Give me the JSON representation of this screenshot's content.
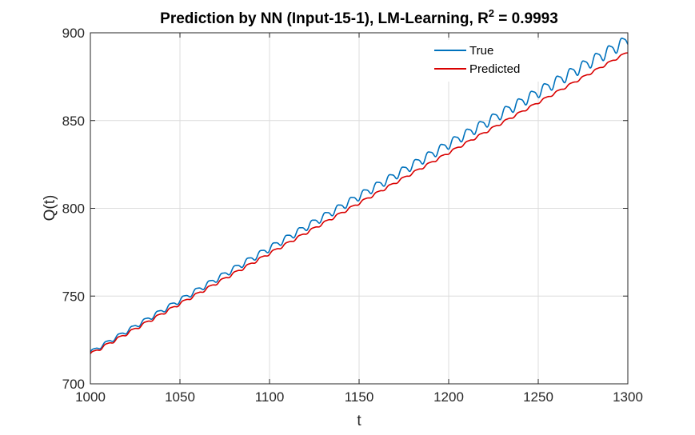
{
  "chart_data": {
    "type": "line",
    "title": {
      "prefix": "Prediction by NN (Input-15-1), LM-Learning, R",
      "superscript": "2",
      "suffix": " = 0.9993"
    },
    "xlabel": "t",
    "ylabel": "Q(t)",
    "xlim": [
      1000,
      1300
    ],
    "ylim": [
      700,
      900
    ],
    "xticks": [
      1000,
      1050,
      1100,
      1150,
      1200,
      1250,
      1300
    ],
    "yticks": [
      700,
      750,
      800,
      850,
      900
    ],
    "grid": true,
    "legend_position": "top-right",
    "series": [
      {
        "name": "True",
        "color": "#0072BD",
        "trend": {
          "x": [
            1000,
            1300
          ],
          "y": [
            718,
            896
          ]
        },
        "oscillation": {
          "amplitude_start": 1.0,
          "amplitude_end": 3.2,
          "period": 7.2
        }
      },
      {
        "name": "Predicted",
        "color": "#D90000",
        "trend": {
          "x": [
            1000,
            1300
          ],
          "y": [
            717,
            889
          ]
        },
        "oscillation": {
          "amplitude_start": 0.8,
          "amplitude_end": 0.6,
          "period": 7.2
        }
      }
    ]
  }
}
